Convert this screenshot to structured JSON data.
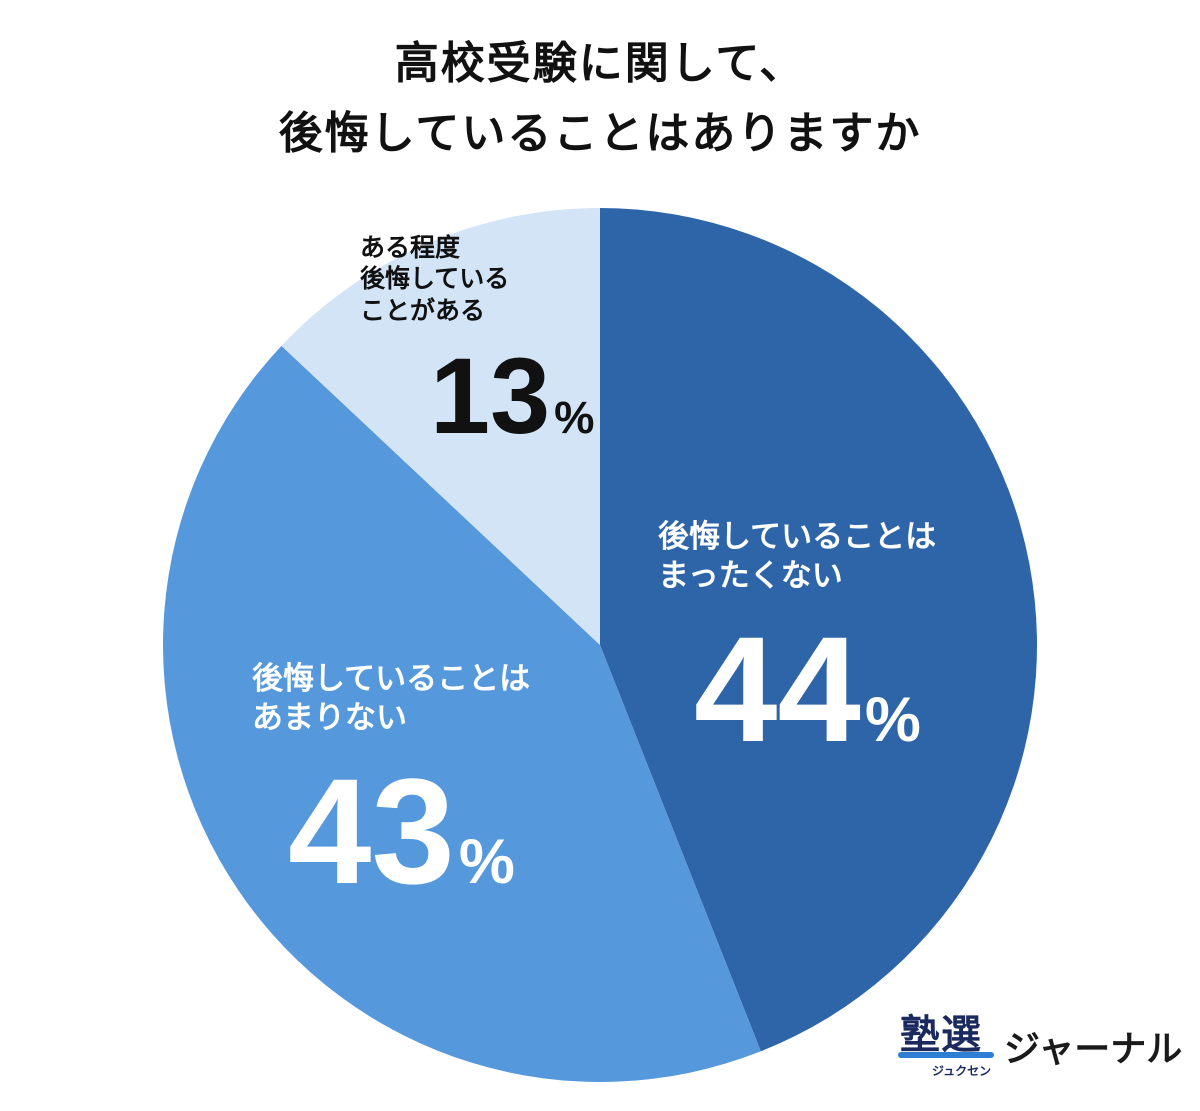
{
  "title": {
    "line1": "高校受験に関して、",
    "line2": "後悔していることはありますか"
  },
  "chart_data": {
    "type": "pie",
    "title": "高校受験に関して、後悔していることはありますか",
    "start_angle_deg": 0,
    "direction": "clockwise",
    "unit": "%",
    "slices": [
      {
        "label_lines": [
          "後悔していることは",
          "まったくない"
        ],
        "value": 44,
        "value_text": "44",
        "color": "#2e65a8"
      },
      {
        "label_lines": [
          "後悔していることは",
          "あまりない"
        ],
        "value": 43,
        "value_text": "43",
        "color": "#5598dc"
      },
      {
        "label_lines": [
          "ある程度",
          "後悔している",
          "ことがある"
        ],
        "value": 13,
        "value_text": "13",
        "color": "#d3e4f7"
      }
    ]
  },
  "logo": {
    "kanji": "塾選",
    "reading": "ジュクセン",
    "journal": "ジャーナル"
  }
}
